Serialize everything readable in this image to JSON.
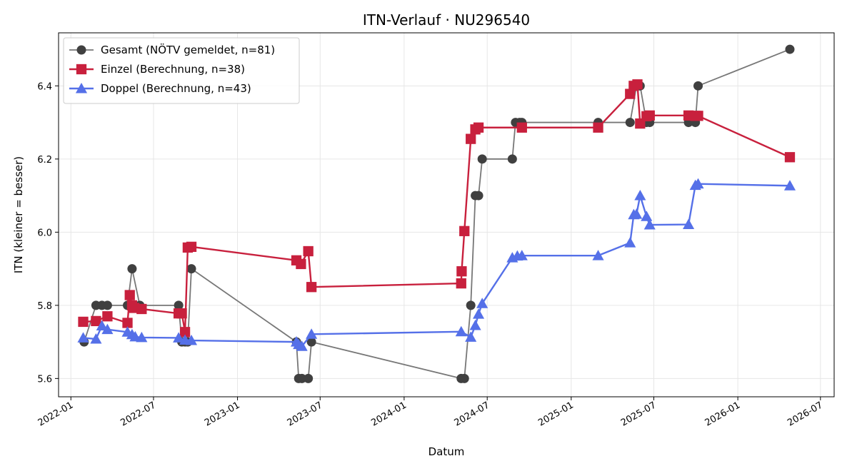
{
  "chart_data": {
    "type": "line",
    "title": "ITN-Verlauf · NU296540",
    "xlabel": "Datum",
    "ylabel": "ITN  (kleiner = besser)",
    "x_axis_type": "date",
    "xlim": [
      "2021-12-05",
      "2026-07-31"
    ],
    "ylim": [
      5.55,
      6.545
    ],
    "x_ticks": [
      "2022-01",
      "2022-07",
      "2023-01",
      "2023-07",
      "2024-01",
      "2024-07",
      "2025-01",
      "2025-07",
      "2026-01",
      "2026-07"
    ],
    "y_ticks": [
      "5.6",
      "5.8",
      "6.0",
      "6.2",
      "6.4"
    ],
    "grid": true,
    "legend_position": "top-left",
    "series": [
      {
        "name": "Gesamt (NÖTV gemeldet, n=81)",
        "color": "#777777",
        "marker": "circle",
        "points": [
          {
            "x": "2022-01-30",
            "y": 5.7
          },
          {
            "x": "2022-02-25",
            "y": 5.8
          },
          {
            "x": "2022-03-10",
            "y": 5.8
          },
          {
            "x": "2022-03-22",
            "y": 5.8
          },
          {
            "x": "2022-05-05",
            "y": 5.8
          },
          {
            "x": "2022-05-15",
            "y": 5.9
          },
          {
            "x": "2022-06-01",
            "y": 5.8
          },
          {
            "x": "2022-08-25",
            "y": 5.8
          },
          {
            "x": "2022-09-01",
            "y": 5.7
          },
          {
            "x": "2022-09-08",
            "y": 5.7
          },
          {
            "x": "2022-09-14",
            "y": 5.7
          },
          {
            "x": "2022-09-22",
            "y": 5.9
          },
          {
            "x": "2023-05-10",
            "y": 5.7
          },
          {
            "x": "2023-05-15",
            "y": 5.6
          },
          {
            "x": "2023-05-22",
            "y": 5.6
          },
          {
            "x": "2023-06-05",
            "y": 5.6
          },
          {
            "x": "2023-06-12",
            "y": 5.7
          },
          {
            "x": "2024-05-05",
            "y": 5.6
          },
          {
            "x": "2024-05-12",
            "y": 5.6
          },
          {
            "x": "2024-05-26",
            "y": 5.8
          },
          {
            "x": "2024-06-05",
            "y": 6.1
          },
          {
            "x": "2024-06-12",
            "y": 6.1
          },
          {
            "x": "2024-06-20",
            "y": 6.2
          },
          {
            "x": "2024-08-25",
            "y": 6.2
          },
          {
            "x": "2024-09-01",
            "y": 6.3
          },
          {
            "x": "2024-09-10",
            "y": 6.3
          },
          {
            "x": "2024-09-15",
            "y": 6.3
          },
          {
            "x": "2025-03-01",
            "y": 6.3
          },
          {
            "x": "2025-05-10",
            "y": 6.3
          },
          {
            "x": "2025-05-24",
            "y": 6.4
          },
          {
            "x": "2025-06-01",
            "y": 6.4
          },
          {
            "x": "2025-06-15",
            "y": 6.3
          },
          {
            "x": "2025-06-22",
            "y": 6.3
          },
          {
            "x": "2025-09-15",
            "y": 6.3
          },
          {
            "x": "2025-09-30",
            "y": 6.3
          },
          {
            "x": "2025-10-06",
            "y": 6.4
          },
          {
            "x": "2026-04-25",
            "y": 6.5
          }
        ]
      },
      {
        "name": "Einzel (Berechnung, n=38)",
        "color": "#c8203d",
        "marker": "square",
        "points": [
          {
            "x": "2022-01-28",
            "y": 5.755
          },
          {
            "x": "2022-02-25",
            "y": 5.757
          },
          {
            "x": "2022-03-22",
            "y": 5.77
          },
          {
            "x": "2022-05-05",
            "y": 5.752
          },
          {
            "x": "2022-05-10",
            "y": 5.828
          },
          {
            "x": "2022-05-15",
            "y": 5.8
          },
          {
            "x": "2022-05-20",
            "y": 5.793
          },
          {
            "x": "2022-06-05",
            "y": 5.79
          },
          {
            "x": "2022-08-25",
            "y": 5.778
          },
          {
            "x": "2022-09-01",
            "y": 5.778
          },
          {
            "x": "2022-09-08",
            "y": 5.727
          },
          {
            "x": "2022-09-14",
            "y": 5.958
          },
          {
            "x": "2022-09-22",
            "y": 5.96
          },
          {
            "x": "2023-05-10",
            "y": 5.923
          },
          {
            "x": "2023-05-20",
            "y": 5.913
          },
          {
            "x": "2023-06-05",
            "y": 5.948
          },
          {
            "x": "2023-06-12",
            "y": 5.85
          },
          {
            "x": "2024-05-05",
            "y": 5.86
          },
          {
            "x": "2024-05-06",
            "y": 5.893
          },
          {
            "x": "2024-05-12",
            "y": 6.003
          },
          {
            "x": "2024-05-26",
            "y": 6.255
          },
          {
            "x": "2024-06-05",
            "y": 6.281
          },
          {
            "x": "2024-06-12",
            "y": 6.286
          },
          {
            "x": "2024-09-15",
            "y": 6.286
          },
          {
            "x": "2025-03-01",
            "y": 6.286
          },
          {
            "x": "2025-05-10",
            "y": 6.378
          },
          {
            "x": "2025-05-18",
            "y": 6.4
          },
          {
            "x": "2025-05-26",
            "y": 6.404
          },
          {
            "x": "2025-06-01",
            "y": 6.297
          },
          {
            "x": "2025-06-15",
            "y": 6.317
          },
          {
            "x": "2025-06-22",
            "y": 6.319
          },
          {
            "x": "2025-09-15",
            "y": 6.319
          },
          {
            "x": "2025-09-30",
            "y": 6.318
          },
          {
            "x": "2025-10-06",
            "y": 6.318
          },
          {
            "x": "2026-04-25",
            "y": 6.205
          }
        ]
      },
      {
        "name": "Doppel (Berechnung, n=43)",
        "color": "#5570e8",
        "marker": "triangle",
        "points": [
          {
            "x": "2022-01-28",
            "y": 5.711
          },
          {
            "x": "2022-02-25",
            "y": 5.708
          },
          {
            "x": "2022-03-10",
            "y": 5.744
          },
          {
            "x": "2022-03-22",
            "y": 5.734
          },
          {
            "x": "2022-05-05",
            "y": 5.727
          },
          {
            "x": "2022-05-15",
            "y": 5.72
          },
          {
            "x": "2022-05-22",
            "y": 5.714
          },
          {
            "x": "2022-06-05",
            "y": 5.712
          },
          {
            "x": "2022-08-25",
            "y": 5.711
          },
          {
            "x": "2022-09-08",
            "y": 5.705
          },
          {
            "x": "2022-09-22",
            "y": 5.704
          },
          {
            "x": "2023-05-10",
            "y": 5.7
          },
          {
            "x": "2023-05-15",
            "y": 5.693
          },
          {
            "x": "2023-05-22",
            "y": 5.688
          },
          {
            "x": "2023-06-12",
            "y": 5.721
          },
          {
            "x": "2024-05-05",
            "y": 5.728
          },
          {
            "x": "2024-05-26",
            "y": 5.713
          },
          {
            "x": "2024-06-05",
            "y": 5.745
          },
          {
            "x": "2024-06-12",
            "y": 5.776
          },
          {
            "x": "2024-06-20",
            "y": 5.805
          },
          {
            "x": "2024-08-25",
            "y": 5.93
          },
          {
            "x": "2024-09-05",
            "y": 5.935
          },
          {
            "x": "2024-09-15",
            "y": 5.936
          },
          {
            "x": "2025-03-01",
            "y": 5.936
          },
          {
            "x": "2025-05-10",
            "y": 5.971
          },
          {
            "x": "2025-05-18",
            "y": 6.048
          },
          {
            "x": "2025-05-24",
            "y": 6.049
          },
          {
            "x": "2025-06-01",
            "y": 6.1
          },
          {
            "x": "2025-06-15",
            "y": 6.043
          },
          {
            "x": "2025-06-22",
            "y": 6.02
          },
          {
            "x": "2025-09-15",
            "y": 6.021
          },
          {
            "x": "2025-09-30",
            "y": 6.128
          },
          {
            "x": "2025-10-06",
            "y": 6.132
          },
          {
            "x": "2026-04-25",
            "y": 6.127
          }
        ]
      }
    ]
  }
}
